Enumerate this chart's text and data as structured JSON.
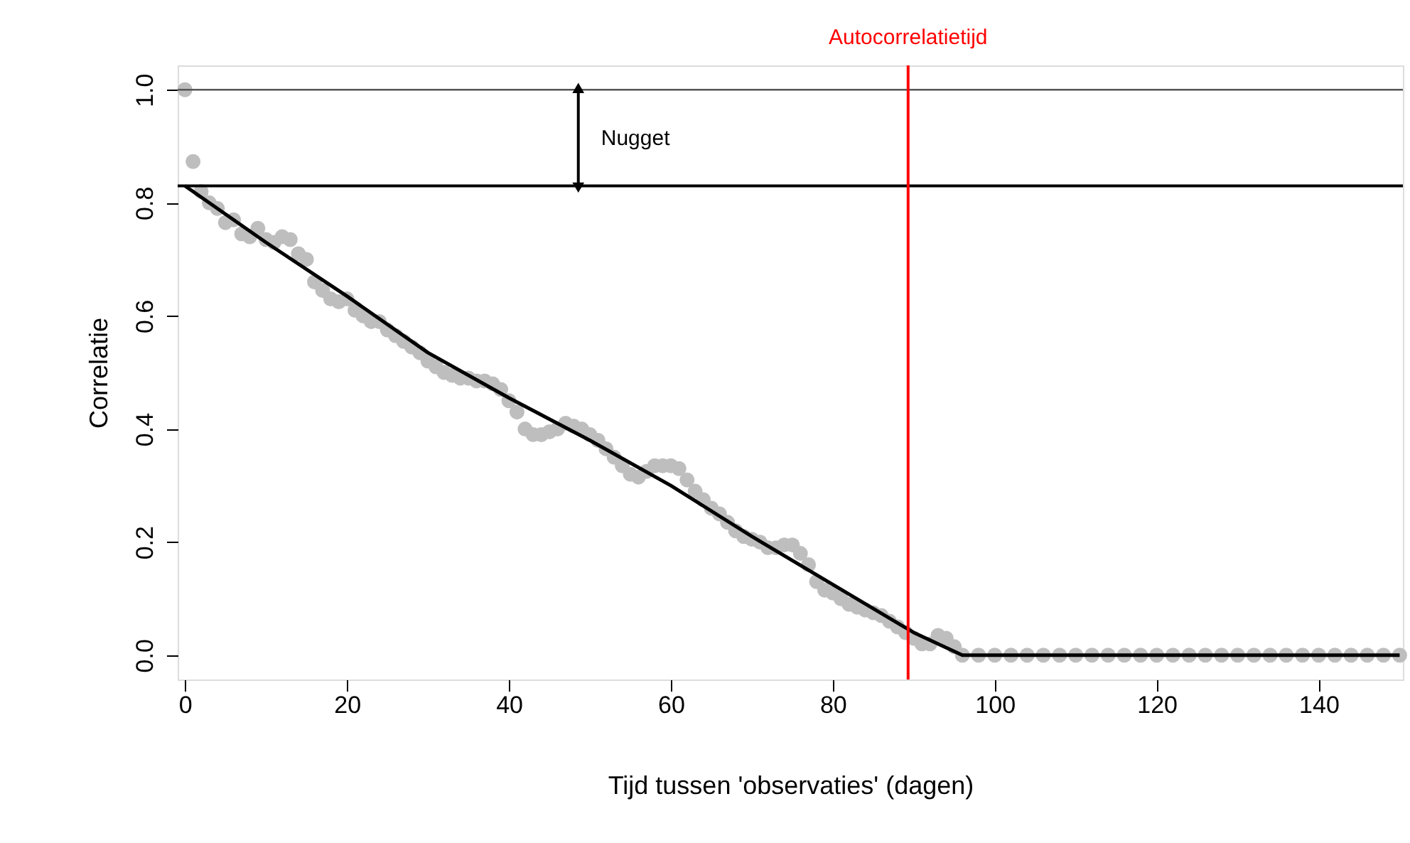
{
  "chart_data": {
    "type": "scatter",
    "xlabel": "Tijd tussen 'observaties' (dagen)",
    "ylabel": "Correlatie",
    "xlim": [
      -0.9,
      150.4
    ],
    "ylim": [
      -0.043,
      1.043
    ],
    "xticks": [
      0,
      20,
      40,
      60,
      80,
      100,
      120,
      140
    ],
    "yticks": [
      {
        "value": 0,
        "label": "0.0"
      },
      {
        "value": 0.2,
        "label": "0.2"
      },
      {
        "value": 0.4,
        "label": "0.4"
      },
      {
        "value": 0.6,
        "label": "0.6"
      },
      {
        "value": 0.8,
        "label": "0.8"
      },
      {
        "value": 1,
        "label": "1.0"
      }
    ],
    "grid": false,
    "marker": "circle",
    "series": [
      {
        "color": "#bebebe",
        "x": [
          0,
          1,
          2,
          3,
          4,
          5,
          6,
          7,
          8,
          9,
          10,
          11,
          12,
          13,
          14,
          15,
          16,
          17,
          18,
          19,
          20,
          21,
          22,
          23,
          24,
          25,
          26,
          27,
          28,
          29,
          30,
          31,
          32,
          33,
          34,
          35,
          36,
          37,
          38,
          39,
          40,
          41,
          42,
          43,
          44,
          45,
          46,
          47,
          48,
          49,
          50,
          51,
          52,
          53,
          54,
          55,
          56,
          57,
          58,
          59,
          60,
          61,
          62,
          63,
          64,
          65,
          66,
          67,
          68,
          69,
          70,
          71,
          72,
          73,
          74,
          75,
          76,
          77,
          78,
          79,
          80,
          81,
          82,
          83,
          84,
          85,
          86,
          87,
          88,
          89,
          90,
          91,
          92,
          93,
          94,
          95,
          96,
          98,
          100,
          102,
          104,
          106,
          108,
          110,
          112,
          114,
          116,
          118,
          120,
          122,
          124,
          126,
          128,
          130,
          132,
          134,
          136,
          138,
          140,
          142,
          144,
          146,
          148,
          150
        ],
        "values": [
          1.0,
          0.873,
          0.82,
          0.8,
          0.79,
          0.765,
          0.77,
          0.745,
          0.74,
          0.755,
          0.735,
          0.73,
          0.74,
          0.735,
          0.71,
          0.7,
          0.66,
          0.645,
          0.63,
          0.625,
          0.63,
          0.61,
          0.6,
          0.59,
          0.59,
          0.575,
          0.565,
          0.555,
          0.545,
          0.535,
          0.52,
          0.51,
          0.5,
          0.495,
          0.49,
          0.49,
          0.485,
          0.485,
          0.48,
          0.47,
          0.45,
          0.43,
          0.4,
          0.39,
          0.39,
          0.395,
          0.4,
          0.41,
          0.405,
          0.4,
          0.39,
          0.38,
          0.365,
          0.35,
          0.335,
          0.32,
          0.315,
          0.325,
          0.335,
          0.335,
          0.335,
          0.33,
          0.31,
          0.29,
          0.275,
          0.26,
          0.25,
          0.235,
          0.22,
          0.21,
          0.205,
          0.2,
          0.19,
          0.19,
          0.195,
          0.195,
          0.18,
          0.16,
          0.13,
          0.115,
          0.11,
          0.1,
          0.09,
          0.085,
          0.08,
          0.075,
          0.07,
          0.06,
          0.05,
          0.04,
          0.03,
          0.02,
          0.02,
          0.035,
          0.03,
          0.015,
          0.0,
          0.0,
          0.0,
          0.0,
          0.0,
          0.0,
          0.0,
          0.0,
          0.0,
          0.0,
          0.0,
          0.0,
          0.0,
          0.0,
          0.0,
          0.0,
          0.0,
          0.0,
          0.0,
          0.0,
          0.0,
          0.0,
          0.0,
          0.0,
          0.0,
          0.0,
          0.0,
          0.0
        ]
      },
      {
        "type": "line",
        "color": "#000000",
        "marker": "none",
        "line_style": "solid",
        "x": [
          0,
          10,
          20,
          30,
          40,
          50,
          60,
          70,
          80,
          90,
          96,
          150
        ],
        "values": [
          0.83,
          0.73,
          0.635,
          0.535,
          0.455,
          0.38,
          0.3,
          0.21,
          0.125,
          0.04,
          0.0,
          0.0
        ]
      }
    ],
    "ref_lines": [
      {
        "axis": "y",
        "value": 1.0,
        "color": "#555555"
      },
      {
        "axis": "y",
        "value": 0.83,
        "color": "#000000"
      },
      {
        "axis": "x",
        "value": 89.3,
        "label": "Autocorrelatietijd",
        "color": "#ff0000"
      }
    ],
    "annotations": [
      "Nugget"
    ]
  }
}
